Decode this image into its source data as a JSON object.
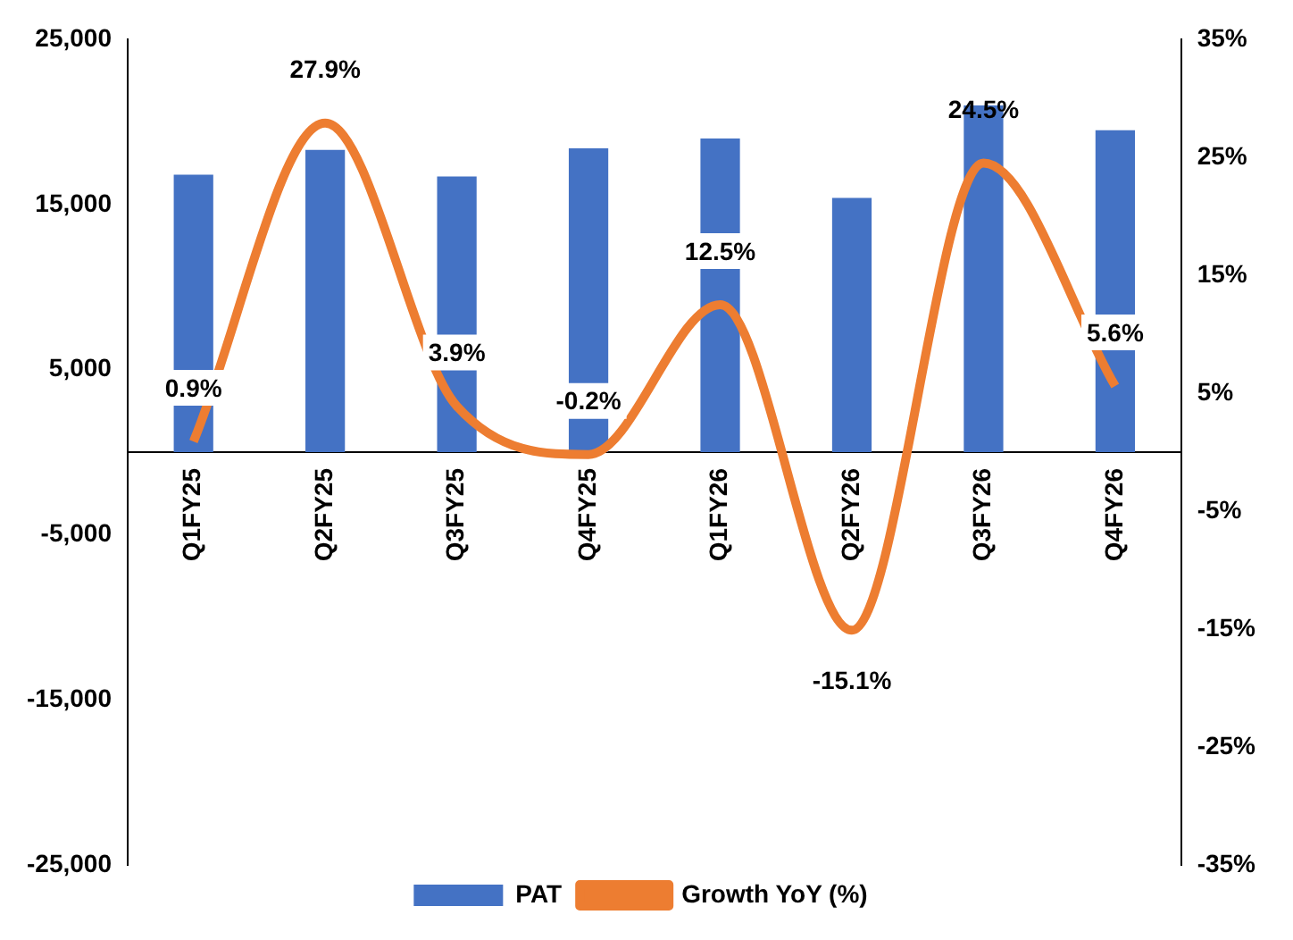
{
  "chart_data": {
    "type": "bar",
    "categories": [
      "Q1FY25",
      "Q2FY25",
      "Q3FY25",
      "Q4FY25",
      "Q1FY26",
      "Q2FY26",
      "Q3FY26",
      "Q4FY26"
    ],
    "series": [
      {
        "name": "PAT",
        "color": "#4472c4",
        "values": [
          16800,
          18300,
          16700,
          18400,
          19000,
          15400,
          21000,
          19500
        ]
      },
      {
        "name": "Growth YoY (%)",
        "type": "line",
        "axis": "y2",
        "color": "#ed7d31",
        "values": [
          0.9,
          27.9,
          3.9,
          -0.2,
          12.5,
          -15.1,
          24.5,
          5.6
        ],
        "value_labels": [
          "0.9%",
          "27.9%",
          "3.9%",
          "-0.2%",
          "12.5%",
          "-15.1%",
          "24.5%",
          "5.6%"
        ]
      }
    ],
    "ylim": [
      -25000,
      25000
    ],
    "yticks": [
      {
        "value": -25000,
        "label": "-25,000"
      },
      {
        "value": -15000,
        "label": "-15,000"
      },
      {
        "value": -5000,
        "label": "-5,000"
      },
      {
        "value": 5000,
        "label": "5,000"
      },
      {
        "value": 15000,
        "label": "15,000"
      },
      {
        "value": 25000,
        "label": "25,000"
      }
    ],
    "y2lim": [
      -35,
      35
    ],
    "y2ticks": [
      {
        "value": -35,
        "label": "-35%"
      },
      {
        "value": -25,
        "label": "-25%"
      },
      {
        "value": -15,
        "label": "-15%"
      },
      {
        "value": -5,
        "label": "-5%"
      },
      {
        "value": 5,
        "label": "5%"
      },
      {
        "value": 15,
        "label": "15%"
      },
      {
        "value": 25,
        "label": "25%"
      },
      {
        "value": 35,
        "label": "35%"
      }
    ],
    "grid": false,
    "legend": "bottom",
    "marker": "none"
  }
}
